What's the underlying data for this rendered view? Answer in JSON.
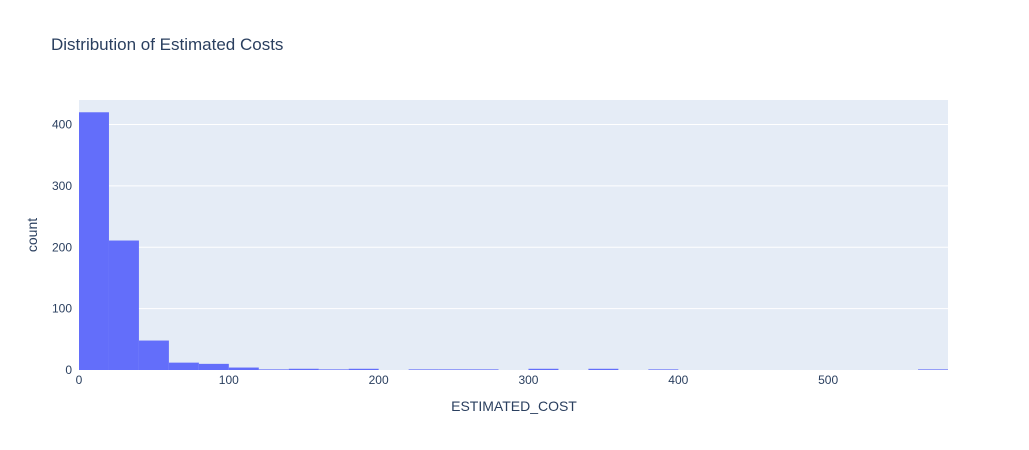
{
  "chart_data": {
    "type": "bar",
    "title": "Distribution of Estimated Costs",
    "xlabel": "ESTIMATED_COST",
    "ylabel": "count",
    "xlim": [
      0,
      580
    ],
    "ylim": [
      0,
      440
    ],
    "x_ticks": [
      0,
      100,
      200,
      300,
      400,
      500
    ],
    "y_ticks": [
      0,
      100,
      200,
      300,
      400
    ],
    "bin_width": 20,
    "bins": [
      {
        "start": 0,
        "end": 20,
        "count": 420
      },
      {
        "start": 20,
        "end": 40,
        "count": 211
      },
      {
        "start": 40,
        "end": 60,
        "count": 48
      },
      {
        "start": 60,
        "end": 80,
        "count": 12
      },
      {
        "start": 80,
        "end": 100,
        "count": 10
      },
      {
        "start": 100,
        "end": 120,
        "count": 4
      },
      {
        "start": 120,
        "end": 140,
        "count": 1
      },
      {
        "start": 140,
        "end": 160,
        "count": 2
      },
      {
        "start": 160,
        "end": 180,
        "count": 1
      },
      {
        "start": 180,
        "end": 200,
        "count": 2
      },
      {
        "start": 200,
        "end": 220,
        "count": 0
      },
      {
        "start": 220,
        "end": 240,
        "count": 1
      },
      {
        "start": 240,
        "end": 260,
        "count": 1
      },
      {
        "start": 260,
        "end": 280,
        "count": 1
      },
      {
        "start": 280,
        "end": 300,
        "count": 0
      },
      {
        "start": 300,
        "end": 320,
        "count": 2
      },
      {
        "start": 320,
        "end": 340,
        "count": 0
      },
      {
        "start": 340,
        "end": 360,
        "count": 2
      },
      {
        "start": 360,
        "end": 380,
        "count": 0
      },
      {
        "start": 380,
        "end": 400,
        "count": 1
      },
      {
        "start": 560,
        "end": 580,
        "count": 1
      }
    ],
    "grid": true,
    "colors": {
      "bar": "#636efa",
      "plot_background": "#e5ecf6",
      "grid": "#ffffff",
      "text": "#2a3f5f"
    }
  }
}
